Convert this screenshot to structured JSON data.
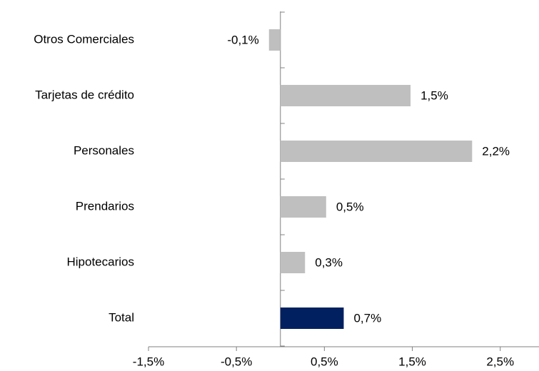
{
  "chart_data": {
    "type": "barh",
    "categories": [
      "Otros Comerciales",
      "Tarjetas de crédito",
      "Personales",
      "Prendarios",
      "Hipotecarios",
      "Total"
    ],
    "values": [
      -0.13,
      1.48,
      2.18,
      0.52,
      0.28,
      0.72
    ],
    "value_labels": [
      "-0,1%",
      "1,5%",
      "2,2%",
      "0,5%",
      "0,3%",
      "0,7%"
    ],
    "colors": [
      "#bfbfbf",
      "#bfbfbf",
      "#bfbfbf",
      "#bfbfbf",
      "#bfbfbf",
      "#002060"
    ],
    "xlim": [
      -1.5,
      2.9
    ],
    "xticks": [
      {
        "value": -1.5,
        "label": "-1,5%"
      },
      {
        "value": -0.5,
        "label": "-0,5%"
      },
      {
        "value": 0.5,
        "label": "0,5%"
      },
      {
        "value": 1.5,
        "label": "1,5%"
      },
      {
        "value": 2.5,
        "label": "2,5%"
      }
    ],
    "grid": false
  }
}
